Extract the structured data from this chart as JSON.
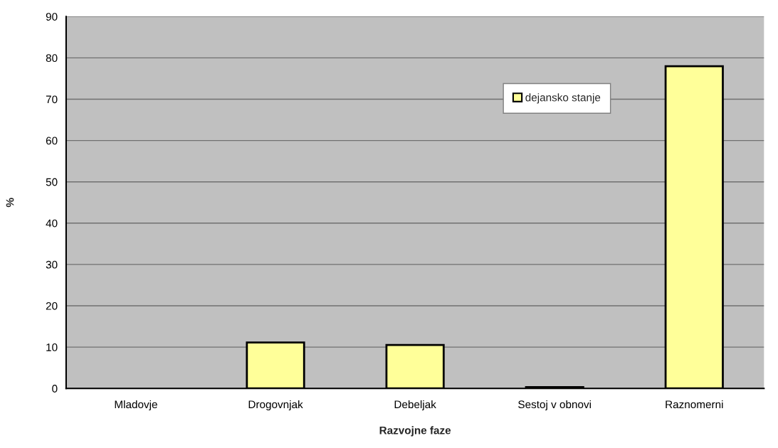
{
  "chart_data": {
    "type": "bar",
    "xlabel": "Razvojne faze",
    "ylabel": "%",
    "categories": [
      "Mladovje",
      "Drogovnjak",
      "Debeljak",
      "Sestoj v obnovi",
      "Raznomerni"
    ],
    "series": [
      {
        "name": "dejansko stanje",
        "color": "#ffff99",
        "values": [
          null,
          11.1,
          10.5,
          0.3,
          78
        ]
      }
    ],
    "ylim": [
      0,
      90
    ],
    "yticks": [
      0,
      10,
      20,
      30,
      40,
      50,
      60,
      70,
      80,
      90
    ],
    "grid": "y",
    "legend": "top right"
  }
}
